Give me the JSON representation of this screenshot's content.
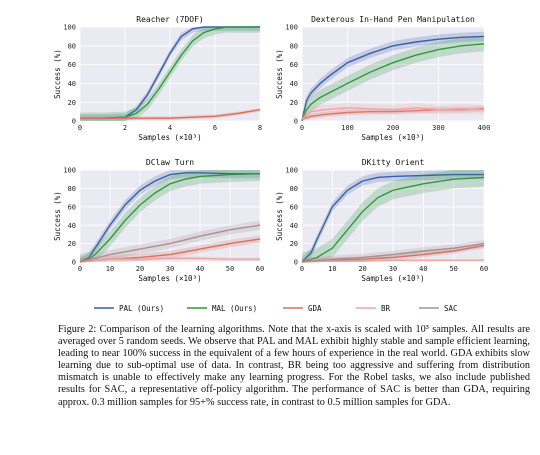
{
  "colors": {
    "pal": "#3a5fa8",
    "mal": "#2f9a3c",
    "gda": "#d9705d",
    "br": "#f2a2a2",
    "sac": "#a98f8f",
    "panel_bg": "#eaeaf2",
    "grid": "#ffffff"
  },
  "legend": {
    "placement": "bottom-center",
    "items": [
      {
        "key": "pal",
        "label": "PAL (Ours)"
      },
      {
        "key": "mal",
        "label": "MAL (Ours)"
      },
      {
        "key": "gda",
        "label": "GDA"
      },
      {
        "key": "br",
        "label": "BR"
      },
      {
        "key": "sac",
        "label": "SAC"
      }
    ]
  },
  "caption": {
    "label": "Figure 2:",
    "text": " Comparison of the learning algorithms. Note that the x-axis is scaled with 10³ samples. All results are averaged over 5 random seeds. We observe that PAL and MAL exhibit highly stable and sample efficient learning, leading to near 100% success in the equivalent of a few hours of experience in the real world. GDA exhibits slow learning due to sub-optimal use of data. In contrast, BR being too aggressive and suffering from distribution mismatch is unable to effectively make any learning progress. For the Robel tasks, we also include published results for SAC, a representative off-policy algorithm. The performance of SAC is better than GDA, requiring approx. 0.3 million samples for 95+% success rate, in contrast to 0.5 million samples for GDA."
  },
  "chart_data": [
    {
      "type": "line",
      "title": "Reacher (7DOF)",
      "xlabel": "Samples (×10³)",
      "ylabel": "Success (%)",
      "xlim": [
        0,
        8
      ],
      "ylim": [
        0,
        100
      ],
      "xticks": [
        0,
        2,
        4,
        6,
        8
      ],
      "yticks": [
        0,
        20,
        40,
        60,
        80,
        100
      ],
      "grid": true,
      "series": [
        {
          "key": "pal",
          "name": "PAL (Ours)",
          "x": [
            0,
            1,
            2,
            2.5,
            3,
            3.5,
            4,
            4.5,
            5,
            5.5,
            6,
            8
          ],
          "y": [
            3,
            3,
            4,
            12,
            28,
            50,
            72,
            90,
            98,
            100,
            100,
            100
          ],
          "band": 4
        },
        {
          "key": "mal",
          "name": "MAL (Ours)",
          "x": [
            0,
            1,
            2,
            2.5,
            3,
            3.5,
            4,
            4.5,
            5,
            5.5,
            6,
            6.5,
            8
          ],
          "y": [
            3,
            3,
            4,
            8,
            18,
            34,
            52,
            70,
            85,
            94,
            98,
            100,
            100
          ],
          "band": 6
        },
        {
          "key": "gda",
          "name": "GDA",
          "x": [
            0,
            1,
            2,
            3,
            4,
            5,
            6,
            7,
            8
          ],
          "y": [
            3,
            3,
            3,
            3,
            3,
            4,
            5,
            8,
            12
          ],
          "band": 2
        }
      ]
    },
    {
      "type": "line",
      "title": "Dexterous In-Hand Pen Manipulation",
      "xlabel": "Samples (×10³)",
      "ylabel": "Success (%)",
      "xlim": [
        0,
        400
      ],
      "ylim": [
        0,
        100
      ],
      "xticks": [
        0,
        100,
        200,
        300,
        400
      ],
      "yticks": [
        0,
        20,
        40,
        60,
        80,
        100
      ],
      "grid": true,
      "series": [
        {
          "key": "pal",
          "name": "PAL (Ours)",
          "x": [
            0,
            10,
            20,
            40,
            60,
            80,
            100,
            150,
            200,
            250,
            300,
            350,
            400
          ],
          "y": [
            0,
            22,
            30,
            40,
            48,
            55,
            62,
            72,
            80,
            84,
            87,
            89,
            90
          ],
          "band": 5
        },
        {
          "key": "mal",
          "name": "MAL (Ours)",
          "x": [
            0,
            10,
            20,
            40,
            60,
            80,
            100,
            150,
            200,
            250,
            300,
            350,
            400
          ],
          "y": [
            0,
            12,
            18,
            25,
            30,
            35,
            40,
            52,
            62,
            70,
            76,
            80,
            82
          ],
          "band": 8
        },
        {
          "key": "gda",
          "name": "GDA",
          "x": [
            0,
            20,
            50,
            100,
            150,
            200,
            250,
            300,
            350,
            400
          ],
          "y": [
            2,
            5,
            7,
            9,
            10,
            10,
            11,
            12,
            12,
            13
          ],
          "band": 3
        },
        {
          "key": "br",
          "name": "BR",
          "x": [
            0,
            20,
            50,
            100,
            150,
            200,
            250,
            300,
            350,
            400
          ],
          "y": [
            2,
            10,
            12,
            14,
            13,
            12,
            14,
            12,
            13,
            12
          ],
          "band": 5
        }
      ]
    },
    {
      "type": "line",
      "title": "DClaw Turn",
      "xlabel": "Samples (×10³)",
      "ylabel": "Success (%)",
      "xlim": [
        0,
        60
      ],
      "ylim": [
        0,
        100
      ],
      "xticks": [
        0,
        10,
        20,
        30,
        40,
        50,
        60
      ],
      "yticks": [
        0,
        20,
        40,
        60,
        80,
        100
      ],
      "grid": true,
      "series": [
        {
          "key": "pal",
          "name": "PAL (Ours)",
          "x": [
            0,
            3,
            5,
            10,
            15,
            20,
            25,
            30,
            35,
            40,
            50,
            60
          ],
          "y": [
            0,
            5,
            15,
            40,
            62,
            78,
            88,
            95,
            97,
            97,
            96,
            96
          ],
          "band": 5
        },
        {
          "key": "mal",
          "name": "MAL (Ours)",
          "x": [
            0,
            3,
            5,
            10,
            15,
            20,
            25,
            30,
            35,
            40,
            50,
            60
          ],
          "y": [
            0,
            3,
            8,
            25,
            45,
            62,
            75,
            85,
            90,
            93,
            95,
            96
          ],
          "band": 8
        },
        {
          "key": "gda",
          "name": "GDA",
          "x": [
            0,
            10,
            20,
            30,
            40,
            50,
            60
          ],
          "y": [
            0,
            3,
            5,
            8,
            14,
            20,
            25
          ],
          "band": 4
        },
        {
          "key": "br",
          "name": "BR",
          "x": [
            0,
            10,
            20,
            30,
            40,
            50,
            60
          ],
          "y": [
            0,
            3,
            3,
            4,
            4,
            3,
            3
          ],
          "band": 2
        },
        {
          "key": "sac",
          "name": "SAC",
          "x": [
            0,
            10,
            20,
            30,
            40,
            50,
            60
          ],
          "y": [
            0,
            8,
            14,
            20,
            28,
            35,
            40
          ],
          "band": 5
        }
      ]
    },
    {
      "type": "line",
      "title": "DKitty Orient",
      "xlabel": "Samples (×10³)",
      "ylabel": "Success (%)",
      "xlim": [
        0,
        60
      ],
      "ylim": [
        0,
        100
      ],
      "xticks": [
        0,
        10,
        20,
        30,
        40,
        50,
        60
      ],
      "yticks": [
        0,
        20,
        40,
        60,
        80,
        100
      ],
      "grid": true,
      "series": [
        {
          "key": "pal",
          "name": "PAL (Ours)",
          "x": [
            0,
            3,
            5,
            10,
            15,
            20,
            25,
            30,
            40,
            50,
            60
          ],
          "y": [
            0,
            10,
            25,
            60,
            78,
            88,
            92,
            93,
            94,
            95,
            95
          ],
          "band": 5
        },
        {
          "key": "mal",
          "name": "MAL (Ours)",
          "x": [
            0,
            5,
            10,
            15,
            20,
            25,
            30,
            40,
            50,
            60
          ],
          "y": [
            0,
            5,
            15,
            35,
            55,
            70,
            78,
            85,
            90,
            92
          ],
          "band": 10
        },
        {
          "key": "gda",
          "name": "GDA",
          "x": [
            0,
            10,
            20,
            30,
            40,
            50,
            60
          ],
          "y": [
            0,
            2,
            3,
            5,
            8,
            12,
            18
          ],
          "band": 3
        },
        {
          "key": "br",
          "name": "BR",
          "x": [
            0,
            10,
            20,
            30,
            40,
            50,
            60
          ],
          "y": [
            0,
            1,
            1,
            2,
            2,
            2,
            2
          ],
          "band": 1
        },
        {
          "key": "sac",
          "name": "SAC",
          "x": [
            0,
            10,
            20,
            30,
            40,
            50,
            60
          ],
          "y": [
            0,
            3,
            5,
            8,
            12,
            15,
            20
          ],
          "band": 4
        }
      ]
    }
  ]
}
